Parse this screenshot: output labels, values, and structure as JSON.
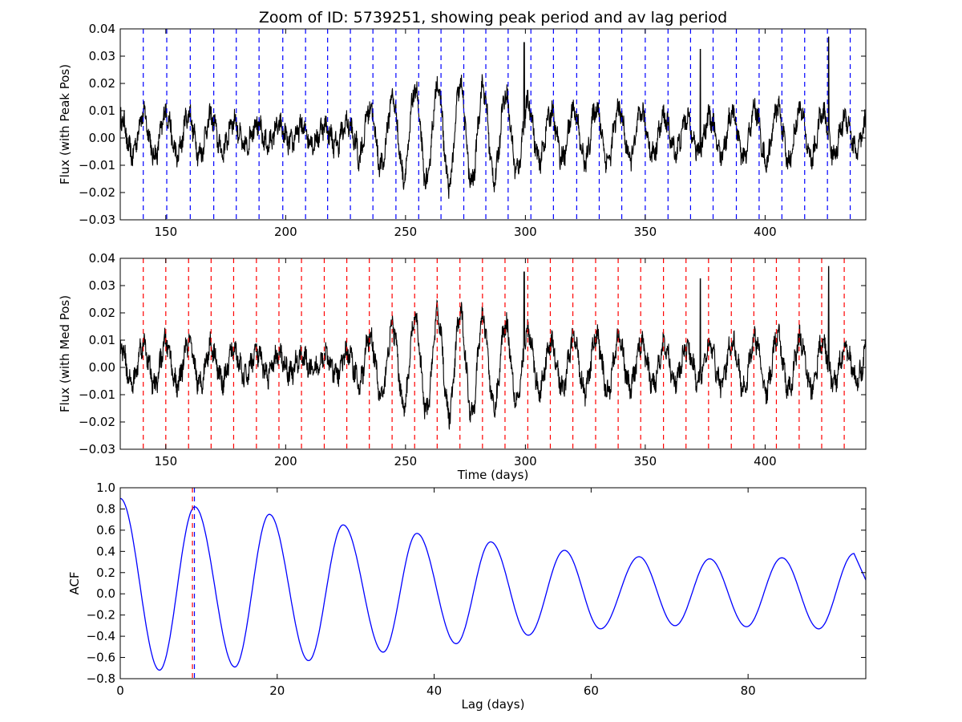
{
  "chart_data": {
    "title": "Zoom of ID: 5739251, showing peak period and av lag period",
    "panels": [
      {
        "type": "line",
        "ylabel": "Flux (with Peak Pos)",
        "xlabel": "",
        "xlim": [
          131,
          442
        ],
        "ylim": [
          -0.03,
          0.04
        ],
        "xticks": [
          150,
          200,
          250,
          300,
          350,
          400
        ],
        "yticks": [
          -0.03,
          -0.02,
          -0.01,
          0.0,
          0.01,
          0.02,
          0.03,
          0.04
        ],
        "grid": false,
        "series": [
          {
            "color": "#000000",
            "signal": "quasi-periodic light curve",
            "period": 9.45,
            "spikes": [
              [
                299.5,
                0.035
              ],
              [
                373.0,
                0.0325
              ],
              [
                426.5,
                0.037
              ]
            ]
          }
        ],
        "markers": {
          "color": "#0000ff",
          "style": "dashed",
          "x": [
            140.6,
            150.4,
            160.2,
            170.0,
            179.4,
            188.9,
            198.8,
            208.3,
            217.5,
            227.0,
            236.4,
            246.0,
            255.5,
            264.8,
            274.3,
            283.5,
            292.8,
            302.3,
            311.7,
            321.4,
            330.8,
            340.2,
            350.0,
            359.5,
            368.9,
            378.3,
            388.0,
            397.5,
            407.0,
            416.5,
            426.0,
            435.5
          ]
        }
      },
      {
        "type": "line",
        "ylabel": "Flux (with Med Pos)",
        "xlabel": "Time (days)",
        "xlim": [
          131,
          442
        ],
        "ylim": [
          -0.03,
          0.04
        ],
        "xticks": [
          150,
          200,
          250,
          300,
          350,
          400
        ],
        "yticks": [
          -0.03,
          -0.02,
          -0.01,
          0.0,
          0.01,
          0.02,
          0.03,
          0.04
        ],
        "grid": false,
        "series": [
          {
            "color": "#000000",
            "signal": "quasi-periodic light curve",
            "period": 9.45,
            "spikes": [
              [
                299.5,
                0.035
              ],
              [
                373.0,
                0.0325
              ],
              [
                426.5,
                0.037
              ]
            ]
          }
        ],
        "markers": {
          "color": "#ff0000",
          "style": "dashed",
          "x": [
            140.6,
            150.0,
            159.5,
            168.9,
            178.3,
            187.8,
            197.2,
            206.6,
            216.1,
            225.5,
            234.9,
            244.4,
            253.8,
            263.2,
            272.7,
            282.1,
            291.5,
            301.0,
            310.4,
            319.8,
            329.3,
            338.7,
            348.1,
            357.6,
            367.0,
            376.4,
            385.9,
            395.3,
            404.7,
            414.2,
            423.6,
            433.0
          ]
        }
      },
      {
        "type": "line",
        "ylabel": "ACF",
        "xlabel": "Lag (days)",
        "xlim": [
          0,
          95
        ],
        "ylim": [
          -0.8,
          1.0
        ],
        "xticks": [
          0,
          20,
          40,
          60,
          80
        ],
        "yticks": [
          -0.8,
          -0.6,
          -0.4,
          -0.2,
          0.0,
          0.2,
          0.4,
          0.6,
          0.8,
          1.0
        ],
        "grid": false,
        "series": [
          {
            "color": "#0000ff",
            "peaks": [
              [
                0,
                0.9
              ],
              [
                9.5,
                0.82
              ],
              [
                19.0,
                0.75
              ],
              [
                28.4,
                0.65
              ],
              [
                37.8,
                0.57
              ],
              [
                47.2,
                0.49
              ],
              [
                56.6,
                0.41
              ],
              [
                66.1,
                0.35
              ],
              [
                75.1,
                0.33
              ],
              [
                84.3,
                0.34
              ],
              [
                93.5,
                0.38
              ]
            ],
            "troughs": [
              [
                5.0,
                -0.72
              ],
              [
                14.6,
                -0.69
              ],
              [
                24.0,
                -0.63
              ],
              [
                33.5,
                -0.55
              ],
              [
                42.8,
                -0.47
              ],
              [
                52.0,
                -0.39
              ],
              [
                61.2,
                -0.33
              ],
              [
                70.7,
                -0.3
              ],
              [
                79.8,
                -0.31
              ],
              [
                89.0,
                -0.33
              ]
            ]
          }
        ],
        "markers": [
          {
            "x": 9.45,
            "color": "#0000ff",
            "style": "dashed"
          },
          {
            "x": 9.2,
            "color": "#ff0000",
            "style": "dashed"
          }
        ]
      }
    ]
  }
}
